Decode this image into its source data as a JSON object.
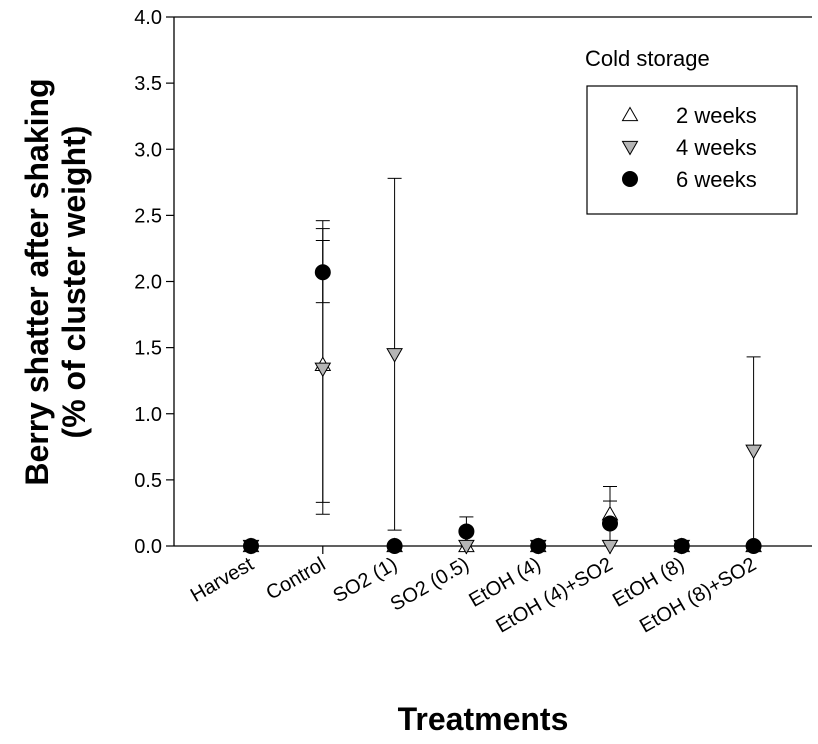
{
  "chart_data": {
    "type": "scatter",
    "xlabel": "Treatments",
    "ylabel_line1": "Berry shatter after shaking",
    "ylabel_line2": "(% of cluster weight)",
    "categories": [
      "Harvest",
      "Control",
      "SO2 (1)",
      "SO2 (0.5)",
      "EtOH (4)",
      "EtOH (4)+SO2",
      "EtOH (8)",
      "EtOH (8)+SO2"
    ],
    "ylim": [
      0,
      4.0
    ],
    "yticks": [
      "0.0",
      "0.5",
      "1.0",
      "1.5",
      "2.0",
      "2.5",
      "3.0",
      "3.5",
      "4.0"
    ],
    "grid": false,
    "legend": {
      "title": "Cold storage",
      "placement": "top-right"
    },
    "series": [
      {
        "name": "2 weeks",
        "marker": "triangle-up",
        "fill": "#ffffff",
        "values": [
          0,
          1.37,
          0,
          0,
          0,
          0.24,
          0,
          0
        ],
        "err_low": [
          0,
          0.33,
          0,
          0,
          0,
          0,
          0,
          0
        ],
        "err_high": [
          0,
          2.4,
          0,
          0,
          0,
          0.45,
          0,
          0
        ]
      },
      {
        "name": "4 weeks",
        "marker": "triangle-down",
        "fill": "#b5b5b5",
        "values": [
          0,
          1.34,
          1.45,
          0,
          0,
          0,
          0,
          0.72
        ],
        "err_low": [
          0,
          0.24,
          0.12,
          0,
          0,
          0,
          0,
          0
        ],
        "err_high": [
          0,
          2.46,
          2.78,
          0,
          0,
          0,
          0,
          1.43
        ]
      },
      {
        "name": "6 weeks",
        "marker": "circle",
        "fill": "#000000",
        "values": [
          0,
          2.07,
          0,
          0.11,
          0,
          0.17,
          0,
          0
        ],
        "err_low": [
          0,
          1.84,
          0,
          0,
          0,
          0,
          0,
          0
        ],
        "err_high": [
          0,
          2.31,
          0,
          0.22,
          0,
          0.34,
          0,
          0
        ]
      }
    ]
  }
}
